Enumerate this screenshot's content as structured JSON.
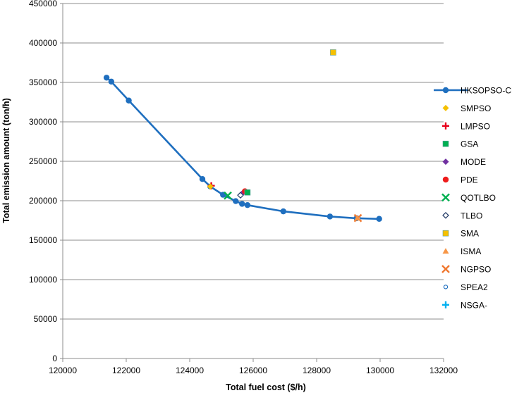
{
  "chart_data": {
    "type": "scatter",
    "xlabel": "Total fuel cost ($/h)",
    "ylabel": "Total emission amount (ton/h)",
    "xlim": [
      120000,
      132000
    ],
    "ylim": [
      0,
      450000
    ],
    "xticks": [
      "120000",
      "122000",
      "124000",
      "126000",
      "128000",
      "130000",
      "132000"
    ],
    "yticks": [
      "0",
      "50000",
      "100000",
      "150000",
      "200000",
      "250000",
      "300000",
      "350000",
      "400000",
      "450000"
    ],
    "grid": "horizontal",
    "legend_position": "right",
    "series": [
      {
        "name": "HKSOPSO-CP",
        "marker": "line-circle",
        "color": "#1f6fbf",
        "points": [
          [
            121380,
            356000
          ],
          [
            121530,
            351000
          ],
          [
            122080,
            327000
          ],
          [
            124400,
            227500
          ],
          [
            124650,
            218000
          ],
          [
            125050,
            207500
          ],
          [
            125450,
            199500
          ],
          [
            125650,
            196000
          ],
          [
            125820,
            194500
          ],
          [
            126950,
            186500
          ],
          [
            128420,
            180000
          ],
          [
            129260,
            177800
          ],
          [
            129970,
            177000
          ]
        ]
      },
      {
        "name": "SMPSO",
        "marker": "diamond",
        "color": "#f5c000",
        "points": [
          [
            124650,
            218000
          ]
        ]
      },
      {
        "name": "LMPSO",
        "marker": "plus",
        "color": "#e8001c",
        "points": [
          [
            124680,
            219000
          ]
        ]
      },
      {
        "name": "GSA",
        "marker": "square",
        "color": "#00b050",
        "points": [
          [
            125820,
            210500
          ]
        ]
      },
      {
        "name": "MODE",
        "marker": "diamond",
        "color": "#7030a0",
        "points": [
          [
            125700,
            211000
          ]
        ]
      },
      {
        "name": "PDE",
        "marker": "circle",
        "color": "#ee1c1c",
        "points": [
          [
            125740,
            212000
          ]
        ]
      },
      {
        "name": "QOTLBO",
        "marker": "x",
        "color": "#00b050",
        "points": [
          [
            125200,
            206500
          ]
        ]
      },
      {
        "name": "TLBO",
        "marker": "open-diamond",
        "color": "#1f3864",
        "points": [
          [
            125600,
            207000
          ]
        ]
      },
      {
        "name": "SMA",
        "marker": "square",
        "color": "#f5c000",
        "points": [
          [
            128520,
            388000
          ]
        ]
      },
      {
        "name": "ISMA",
        "marker": "triangle",
        "color": "#f79646",
        "points": [
          [
            129280,
            178000
          ]
        ]
      },
      {
        "name": "NGPSO",
        "marker": "x",
        "color": "#f07830",
        "points": [
          [
            129300,
            178000
          ]
        ]
      },
      {
        "name": "SPEA2",
        "marker": "open-circle",
        "color": "#1f6fbf",
        "points": [
          [
            129320,
            178000
          ]
        ]
      },
      {
        "name": "NSGA-",
        "marker": "plus",
        "color": "#00b0f0",
        "points": []
      }
    ]
  }
}
